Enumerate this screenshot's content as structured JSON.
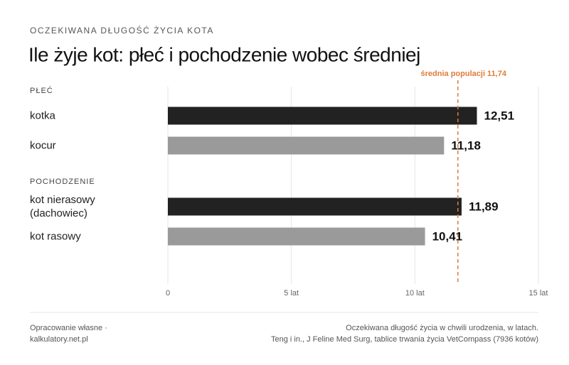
{
  "chart_data": {
    "type": "bar",
    "orientation": "horizontal",
    "supertitle": "OCZEKIWANA DŁUGOŚĆ ŻYCIA KOTA",
    "title": "Ile żyje kot: płeć i pochodzenie wobec średniej",
    "groups": [
      {
        "name": "PŁEĆ",
        "categories": [
          "kotka",
          "kocur"
        ],
        "values": [
          12.51,
          11.18
        ],
        "value_labels": [
          "12,51",
          "11,18"
        ],
        "colors": [
          "#222222",
          "#9a9a9a"
        ]
      },
      {
        "name": "POCHODZENIE",
        "categories": [
          "kot nierasowy (dachowiec)",
          "kot rasowy"
        ],
        "values": [
          11.89,
          10.41
        ],
        "value_labels": [
          "11,89",
          "10,41"
        ],
        "colors": [
          "#222222",
          "#9a9a9a"
        ]
      }
    ],
    "xlim": [
      0,
      15
    ],
    "xticks": [
      0,
      {
        "value": 5,
        "label": "5 lat"
      },
      {
        "value": 10,
        "label": "10 lat"
      },
      {
        "value": 15,
        "label": "15 lat"
      }
    ],
    "grid": true,
    "reference": {
      "value": 11.74,
      "label": "średnia populacji 11,74",
      "color": "#e07b39"
    },
    "footer_left": [
      "Opracowanie własne ·",
      "kalkulatory.net.pl"
    ],
    "footer_right": [
      "Oczekiwana długość życia w chwili urodzenia, w latach.",
      "Teng i in., J Feline Med Surg, tablice trwania życia VetCompass (7936 kotów)"
    ]
  }
}
